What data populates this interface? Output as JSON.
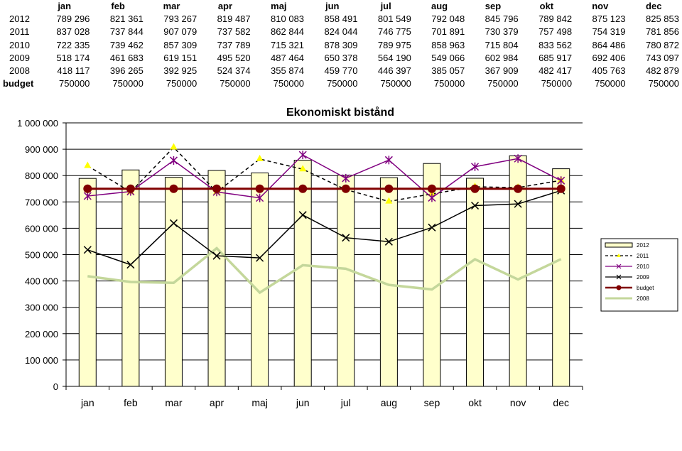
{
  "table": {
    "months": [
      "jan",
      "feb",
      "mar",
      "apr",
      "maj",
      "jun",
      "jul",
      "aug",
      "sep",
      "okt",
      "nov",
      "dec"
    ],
    "rows": [
      {
        "label": "2012",
        "values": [
          "789 296",
          "821 361",
          "793 267",
          "819 487",
          "810 083",
          "858 491",
          "801 549",
          "792 048",
          "845 796",
          "789 842",
          "875 123",
          "825 853"
        ]
      },
      {
        "label": "2011",
        "values": [
          "837 028",
          "737 844",
          "907 079",
          "737 582",
          "862 844",
          "824 044",
          "746 775",
          "701 891",
          "730 379",
          "757 498",
          "754 319",
          "781 856"
        ]
      },
      {
        "label": "2010",
        "values": [
          "722 335",
          "739 462",
          "857 309",
          "737 789",
          "715 321",
          "878 309",
          "789 975",
          "858 963",
          "715 804",
          "833 562",
          "864 486",
          "780 872"
        ]
      },
      {
        "label": "2009",
        "values": [
          "518 174",
          "461 683",
          "619 151",
          "495 520",
          "487 464",
          "650 378",
          "564 190",
          "549 066",
          "602 984",
          "685 917",
          "692 406",
          "743 097"
        ]
      },
      {
        "label": "2008",
        "values": [
          "418 117",
          "396 265",
          "392 925",
          "524 374",
          "355 874",
          "459 770",
          "446 397",
          "385 057",
          "367 909",
          "482 417",
          "405 763",
          "482 879"
        ]
      },
      {
        "label": "budget",
        "values": [
          "750000",
          "750000",
          "750000",
          "750000",
          "750000",
          "750000",
          "750000",
          "750000",
          "750000",
          "750000",
          "750000",
          "750000"
        ]
      }
    ]
  },
  "chart_data": {
    "type": "bar",
    "title": "Ekonomiskt bistånd",
    "categories": [
      "jan",
      "feb",
      "mar",
      "apr",
      "maj",
      "jun",
      "jul",
      "aug",
      "sep",
      "okt",
      "nov",
      "dec"
    ],
    "ylim": [
      0,
      1000000
    ],
    "yticks": [
      0,
      100000,
      200000,
      300000,
      400000,
      500000,
      600000,
      700000,
      800000,
      900000,
      1000000
    ],
    "ytick_labels": [
      "0",
      "100 000",
      "200 000",
      "300 000",
      "400 000",
      "500 000",
      "600 000",
      "700 000",
      "800 000",
      "900 000",
      "1 000 000"
    ],
    "grid": "horizontal",
    "legend_position": "right",
    "series": [
      {
        "name": "2012",
        "type": "bar",
        "color": "#ffffcc",
        "values": [
          789296,
          821361,
          793267,
          819487,
          810083,
          858491,
          801549,
          792048,
          845796,
          789842,
          875123,
          825853
        ]
      },
      {
        "name": "2011",
        "type": "line",
        "color": "#000000",
        "dash": "dashed",
        "marker": "triangle",
        "marker_color": "#ffff00",
        "values": [
          837028,
          737844,
          907079,
          737582,
          862844,
          824044,
          746775,
          701891,
          730379,
          757498,
          754319,
          781856
        ]
      },
      {
        "name": "2010",
        "type": "line",
        "color": "#800080",
        "marker": "star",
        "values": [
          722335,
          739462,
          857309,
          737789,
          715321,
          878309,
          789975,
          858963,
          715804,
          833562,
          864486,
          780872
        ]
      },
      {
        "name": "2009",
        "type": "line",
        "color": "#000000",
        "marker": "x",
        "values": [
          518174,
          461683,
          619151,
          495520,
          487464,
          650378,
          564190,
          549066,
          602984,
          685917,
          692406,
          743097
        ]
      },
      {
        "name": "budget",
        "type": "line",
        "color": "#800000",
        "marker": "circle",
        "values": [
          750000,
          750000,
          750000,
          750000,
          750000,
          750000,
          750000,
          750000,
          750000,
          750000,
          750000,
          750000
        ]
      },
      {
        "name": "2008",
        "type": "line",
        "color": "#c4d79b",
        "marker": "none",
        "values": [
          418117,
          396265,
          392925,
          524374,
          355874,
          459770,
          446397,
          385057,
          367909,
          482417,
          405763,
          482879
        ]
      }
    ]
  }
}
